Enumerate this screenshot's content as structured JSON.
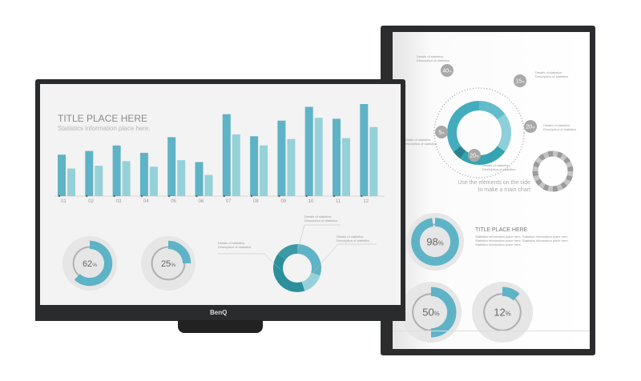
{
  "brand": "BenQ",
  "left_screen": {
    "title": "TITLE PLACE HERE",
    "subtitle": "Statistics information place here.",
    "callouts": [
      {
        "l1": "Details of statistics.",
        "l2": "Description of statistics."
      },
      {
        "l1": "Details of statistics.",
        "l2": "Description of statistics."
      },
      {
        "l1": "Details of statistics.",
        "l2": "Description of statistics."
      }
    ],
    "gauges": [
      {
        "label": "62",
        "unit": "%",
        "value": 62
      },
      {
        "label": "25",
        "unit": "%",
        "value": 25
      }
    ]
  },
  "right_screen": {
    "ring_labels": [
      {
        "pct": "40",
        "unit": "%"
      },
      {
        "pct": "15",
        "unit": "%"
      },
      {
        "pct": "20",
        "unit": "%"
      },
      {
        "pct": "5",
        "unit": "%"
      },
      {
        "pct": "20",
        "unit": "%"
      }
    ],
    "details": [
      {
        "l1": "Details of statistics.",
        "l2": "Description of statistics."
      },
      {
        "l1": "Details of statistics.",
        "l2": "Description of statistics."
      },
      {
        "l1": "Details of statistics.",
        "l2": "Description of statistics."
      },
      {
        "l1": "Details of statistics.",
        "l2": "Description of statistics."
      },
      {
        "l1": "Details of statistics.",
        "l2": "Description of statistics."
      }
    ],
    "hint_line1": "Use the elements on the side",
    "hint_line2": "to make a main chart",
    "title": "TITLE PLACE HERE",
    "body": "Statistics information place here. Statistics information place here. Statistics information place here. Statistics information place here. Statistics information place here.",
    "gauges": [
      {
        "label": "98",
        "unit": "%",
        "value": 98
      },
      {
        "label": "50",
        "unit": "%",
        "value": 50
      },
      {
        "label": "12",
        "unit": "%",
        "value": 12
      }
    ]
  },
  "colors": {
    "dark_teal": "#5fb3c6",
    "light_teal": "#96d1d9",
    "ring_dark": "#2c8f9c",
    "grey": "#a8a8a8"
  },
  "chart_data": {
    "type": "bar",
    "categories": [
      "01",
      "02",
      "03",
      "04",
      "05",
      "06",
      "07",
      "08",
      "09",
      "10",
      "11",
      "12"
    ],
    "series": [
      {
        "values": [
          45,
          49,
          55,
          47,
          64,
          37,
          89,
          65,
          82,
          97,
          84,
          100
        ]
      },
      {
        "values": [
          30,
          33,
          38,
          32,
          39,
          23,
          67,
          55,
          62,
          85,
          63,
          75
        ]
      }
    ]
  }
}
